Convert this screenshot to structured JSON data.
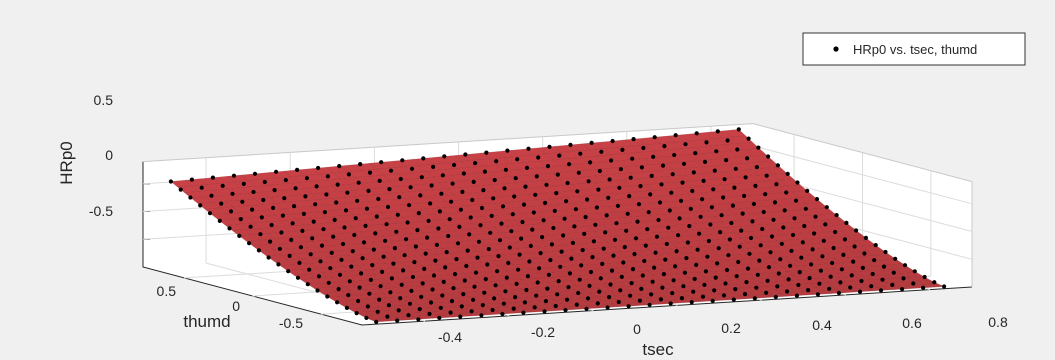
{
  "chart_data": {
    "type": "surface3d",
    "title": "",
    "xlabel": "tsec",
    "ylabel": "thumd",
    "zlabel": "HRp0",
    "x_ticks": [
      "-0.4",
      "-0.2",
      "0",
      "0.2",
      "0.4",
      "0.6",
      "0.8"
    ],
    "y_ticks": [
      "0.5",
      "0",
      "-0.5"
    ],
    "z_ticks": [
      "0.5",
      "0",
      "-0.5"
    ],
    "xlim": [
      -0.55,
      0.9
    ],
    "ylim": [
      -0.8,
      0.8
    ],
    "zlim": [
      -1.0,
      0.9
    ],
    "grid": true,
    "legend": {
      "position": "top-right",
      "entries": [
        "HRp0 vs. tsec, thumd"
      ]
    },
    "series": [
      {
        "name": "HRp0 vs. tsec, thumd",
        "kind": "scatter3",
        "marker": "dot",
        "x_range": [
          -0.5,
          0.85
        ],
        "y_range": [
          -0.75,
          0.75
        ],
        "grid_points": [
          28,
          22
        ],
        "z_at_corners": {
          "x_min_y_min": -1.0,
          "x_min_y_max": 0.55,
          "x_max_y_min": -1.0,
          "x_max_y_max": 0.85
        }
      }
    ],
    "surface": {
      "color": "#c84146",
      "edge_color": "#8a2326"
    }
  }
}
